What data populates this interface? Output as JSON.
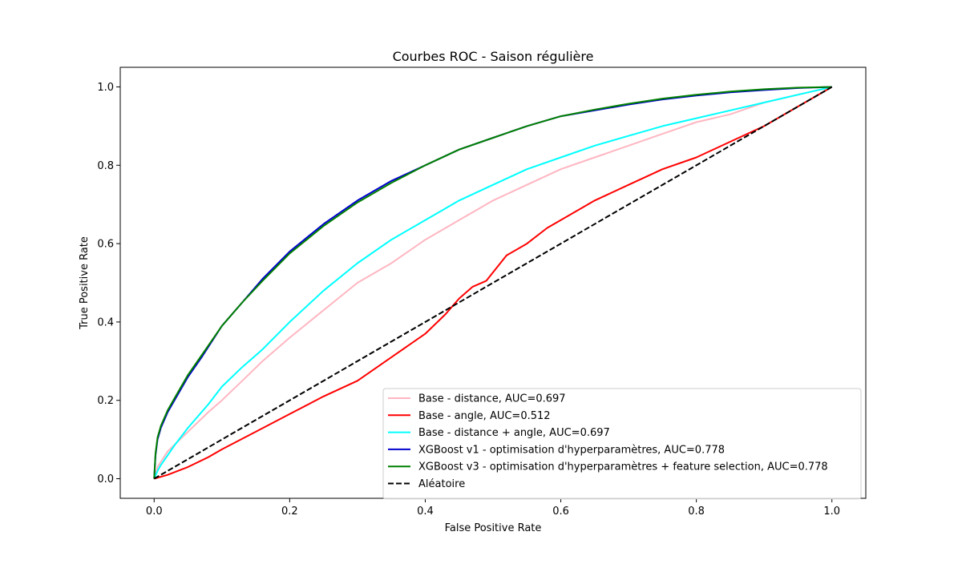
{
  "chart_data": {
    "type": "line",
    "title": "Courbes ROC - Saison régulière",
    "xlabel": "False Positive Rate",
    "ylabel": "True Positive Rate",
    "xlim": [
      -0.05,
      1.05
    ],
    "ylim": [
      -0.05,
      1.05
    ],
    "xticks": [
      0.0,
      0.2,
      0.4,
      0.6,
      0.8,
      1.0
    ],
    "yticks": [
      0.0,
      0.2,
      0.4,
      0.6,
      0.8,
      1.0
    ],
    "xtick_labels": [
      "0.0",
      "0.2",
      "0.4",
      "0.6",
      "0.8",
      "1.0"
    ],
    "ytick_labels": [
      "0.0",
      "0.2",
      "0.4",
      "0.6",
      "0.8",
      "1.0"
    ],
    "grid": false,
    "legend_position": "lower-right",
    "series": [
      {
        "name": "Base - distance, AUC=0.697",
        "color": "#ffb6c1",
        "style": "solid",
        "x": [
          0,
          0.005,
          0.02,
          0.05,
          0.08,
          0.1,
          0.13,
          0.16,
          0.2,
          0.25,
          0.3,
          0.35,
          0.4,
          0.45,
          0.5,
          0.55,
          0.6,
          0.65,
          0.7,
          0.75,
          0.8,
          0.85,
          0.9,
          0.95,
          1.0
        ],
        "y": [
          0,
          0.03,
          0.07,
          0.12,
          0.17,
          0.2,
          0.25,
          0.3,
          0.36,
          0.43,
          0.5,
          0.55,
          0.61,
          0.66,
          0.71,
          0.75,
          0.79,
          0.82,
          0.85,
          0.88,
          0.91,
          0.93,
          0.96,
          0.98,
          1.0
        ]
      },
      {
        "name": "Base - angle, AUC=0.512",
        "color": "#ff0000",
        "style": "solid",
        "x": [
          0,
          0.02,
          0.05,
          0.08,
          0.1,
          0.15,
          0.2,
          0.25,
          0.3,
          0.35,
          0.4,
          0.43,
          0.45,
          0.47,
          0.49,
          0.52,
          0.55,
          0.58,
          0.6,
          0.65,
          0.7,
          0.75,
          0.8,
          0.85,
          0.9,
          0.95,
          1.0
        ],
        "y": [
          0,
          0.01,
          0.03,
          0.055,
          0.075,
          0.12,
          0.165,
          0.21,
          0.25,
          0.31,
          0.37,
          0.42,
          0.46,
          0.49,
          0.505,
          0.57,
          0.6,
          0.64,
          0.66,
          0.71,
          0.75,
          0.79,
          0.82,
          0.86,
          0.9,
          0.95,
          1.0
        ]
      },
      {
        "name": "Base - distance + angle, AUC=0.697",
        "color": "#00ffff",
        "style": "solid",
        "x": [
          0,
          0.005,
          0.01,
          0.02,
          0.03,
          0.05,
          0.08,
          0.1,
          0.13,
          0.16,
          0.2,
          0.25,
          0.3,
          0.35,
          0.4,
          0.45,
          0.5,
          0.55,
          0.6,
          0.65,
          0.7,
          0.75,
          0.8,
          0.85,
          0.9,
          0.95,
          1.0
        ],
        "y": [
          0,
          0.02,
          0.035,
          0.06,
          0.085,
          0.13,
          0.19,
          0.235,
          0.285,
          0.33,
          0.4,
          0.48,
          0.55,
          0.61,
          0.66,
          0.71,
          0.75,
          0.79,
          0.82,
          0.85,
          0.875,
          0.9,
          0.92,
          0.94,
          0.96,
          0.98,
          1.0
        ]
      },
      {
        "name": "XGBoost v1 - optimisation d'hyperparamètres, AUC=0.778",
        "color": "#0000cd",
        "style": "solid",
        "x": [
          0,
          0.002,
          0.005,
          0.01,
          0.02,
          0.03,
          0.05,
          0.07,
          0.1,
          0.13,
          0.16,
          0.2,
          0.25,
          0.3,
          0.35,
          0.4,
          0.45,
          0.5,
          0.55,
          0.6,
          0.65,
          0.7,
          0.75,
          0.8,
          0.85,
          0.9,
          0.95,
          1.0
        ],
        "y": [
          0,
          0.06,
          0.1,
          0.13,
          0.17,
          0.2,
          0.26,
          0.31,
          0.39,
          0.45,
          0.51,
          0.58,
          0.65,
          0.71,
          0.76,
          0.8,
          0.84,
          0.87,
          0.9,
          0.925,
          0.94,
          0.955,
          0.968,
          0.978,
          0.986,
          0.992,
          0.997,
          1.0
        ]
      },
      {
        "name": "XGBoost v3 - optimisation d'hyperparamètres + feature selection, AUC=0.778",
        "color": "#008000",
        "style": "solid",
        "x": [
          0,
          0.002,
          0.005,
          0.01,
          0.02,
          0.03,
          0.05,
          0.07,
          0.1,
          0.13,
          0.16,
          0.2,
          0.25,
          0.3,
          0.35,
          0.4,
          0.45,
          0.5,
          0.55,
          0.6,
          0.65,
          0.7,
          0.75,
          0.8,
          0.85,
          0.9,
          0.95,
          1.0
        ],
        "y": [
          0,
          0.065,
          0.105,
          0.135,
          0.175,
          0.205,
          0.265,
          0.315,
          0.39,
          0.45,
          0.505,
          0.575,
          0.645,
          0.705,
          0.755,
          0.8,
          0.84,
          0.87,
          0.9,
          0.925,
          0.942,
          0.957,
          0.97,
          0.98,
          0.988,
          0.994,
          0.998,
          1.0
        ]
      },
      {
        "name": "Aléatoire",
        "color": "#000000",
        "style": "dashed",
        "x": [
          0,
          1
        ],
        "y": [
          0,
          1
        ]
      }
    ]
  }
}
